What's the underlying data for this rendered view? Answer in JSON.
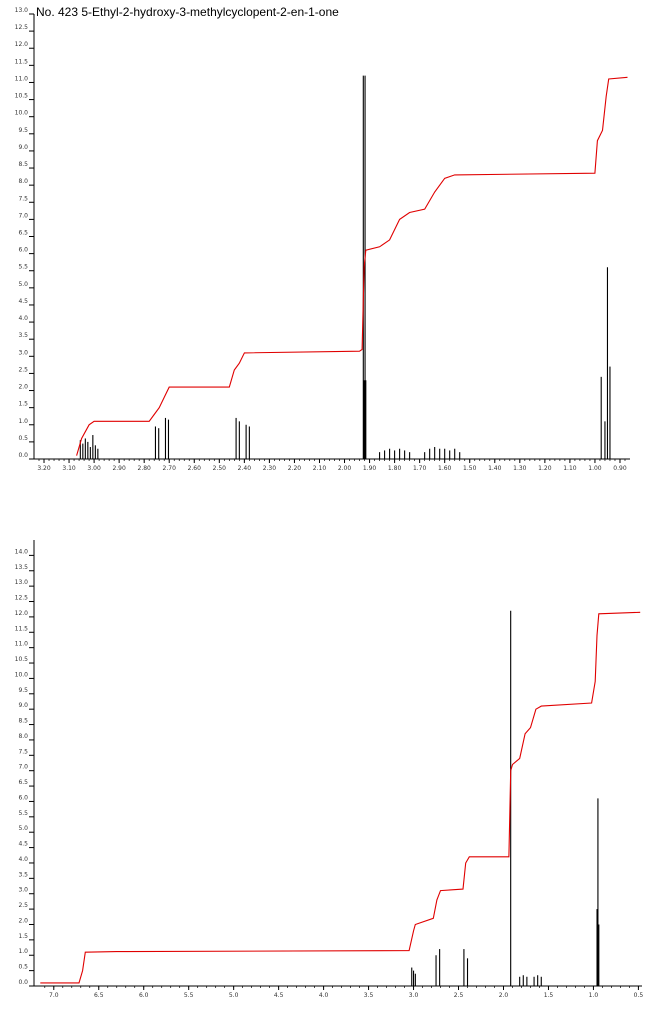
{
  "title": "No. 423 5-Ethyl-2-hydroxy-3-methylcyclopent-2-en-1-one",
  "colors": {
    "spectrum": "#000000",
    "integral": "#e00000",
    "integral_alt": "#1a1aa0",
    "axis": "#000000"
  },
  "chart_data": [
    {
      "type": "line",
      "name": "expanded-spectrum",
      "x_reversed": true,
      "xlim": [
        3.24,
        0.86
      ],
      "ylim": [
        0,
        13.0
      ],
      "x_ticks": [
        "3.20",
        "3.10",
        "3.00",
        "2.90",
        "2.80",
        "2.70",
        "2.60",
        "2.50",
        "2.40",
        "2.30",
        "2.20",
        "2.10",
        "2.00",
        "1.90",
        "1.80",
        "1.70",
        "1.60",
        "1.50",
        "1.40",
        "1.30",
        "1.20",
        "1.10",
        "1.00",
        "0.90"
      ],
      "x_tick_values": [
        3.2,
        3.1,
        3.0,
        2.9,
        2.8,
        2.7,
        2.6,
        2.5,
        2.4,
        2.3,
        2.2,
        2.1,
        2.0,
        1.9,
        1.8,
        1.7,
        1.6,
        1.5,
        1.4,
        1.3,
        1.2,
        1.1,
        1.0,
        0.9
      ],
      "y_ticks": [
        "0.0",
        "0.5",
        "1.0",
        "1.5",
        "2.0",
        "2.5",
        "3.0",
        "3.5",
        "4.0",
        "4.5",
        "5.0",
        "5.5",
        "6.0",
        "6.5",
        "7.0",
        "7.5",
        "8.0",
        "8.5",
        "9.0",
        "9.5",
        "10.0",
        "10.5",
        "11.0",
        "11.5",
        "12.0",
        "12.5",
        "13.0"
      ],
      "y_tick_values": [
        0.0,
        0.5,
        1.0,
        1.5,
        2.0,
        2.5,
        3.0,
        3.5,
        4.0,
        4.5,
        5.0,
        5.5,
        6.0,
        6.5,
        7.0,
        7.5,
        8.0,
        8.5,
        9.0,
        9.5,
        10.0,
        10.5,
        11.0,
        11.5,
        12.0,
        12.5,
        13.0
      ],
      "peaks": [
        {
          "x": 3.055,
          "y": 0.55
        },
        {
          "x": 3.045,
          "y": 0.45
        },
        {
          "x": 3.035,
          "y": 0.6
        },
        {
          "x": 3.025,
          "y": 0.5
        },
        {
          "x": 3.015,
          "y": 0.35
        },
        {
          "x": 3.005,
          "y": 0.7
        },
        {
          "x": 2.995,
          "y": 0.4
        },
        {
          "x": 2.985,
          "y": 0.3
        },
        {
          "x": 2.755,
          "y": 0.95
        },
        {
          "x": 2.742,
          "y": 0.9
        },
        {
          "x": 2.715,
          "y": 1.2
        },
        {
          "x": 2.703,
          "y": 1.15
        },
        {
          "x": 2.433,
          "y": 1.2
        },
        {
          "x": 2.42,
          "y": 1.1
        },
        {
          "x": 2.393,
          "y": 1.0
        },
        {
          "x": 2.38,
          "y": 0.95
        },
        {
          "x": 1.925,
          "y": 11.2
        },
        {
          "x": 1.918,
          "y": 11.2
        },
        {
          "x": 1.922,
          "y": 2.3
        },
        {
          "x": 1.915,
          "y": 2.3
        },
        {
          "x": 1.86,
          "y": 0.2
        },
        {
          "x": 1.84,
          "y": 0.25
        },
        {
          "x": 1.82,
          "y": 0.3
        },
        {
          "x": 1.8,
          "y": 0.25
        },
        {
          "x": 1.78,
          "y": 0.3
        },
        {
          "x": 1.76,
          "y": 0.25
        },
        {
          "x": 1.74,
          "y": 0.2
        },
        {
          "x": 1.68,
          "y": 0.2
        },
        {
          "x": 1.66,
          "y": 0.3
        },
        {
          "x": 1.64,
          "y": 0.35
        },
        {
          "x": 1.62,
          "y": 0.3
        },
        {
          "x": 1.6,
          "y": 0.3
        },
        {
          "x": 1.58,
          "y": 0.25
        },
        {
          "x": 1.56,
          "y": 0.3
        },
        {
          "x": 1.54,
          "y": 0.2
        },
        {
          "x": 0.975,
          "y": 2.4
        },
        {
          "x": 0.96,
          "y": 1.1
        },
        {
          "x": 0.95,
          "y": 5.6
        },
        {
          "x": 0.94,
          "y": 2.7
        }
      ],
      "integral": [
        {
          "x": 3.07,
          "y": 0.1
        },
        {
          "x": 3.05,
          "y": 0.6
        },
        {
          "x": 3.02,
          "y": 1.0
        },
        {
          "x": 3.0,
          "y": 1.1
        },
        {
          "x": 2.78,
          "y": 1.1
        },
        {
          "x": 2.76,
          "y": 1.3
        },
        {
          "x": 2.74,
          "y": 1.5
        },
        {
          "x": 2.72,
          "y": 1.8
        },
        {
          "x": 2.7,
          "y": 2.1
        },
        {
          "x": 2.46,
          "y": 2.1
        },
        {
          "x": 2.44,
          "y": 2.6
        },
        {
          "x": 2.42,
          "y": 2.8
        },
        {
          "x": 2.4,
          "y": 3.1
        },
        {
          "x": 1.94,
          "y": 3.15
        },
        {
          "x": 1.93,
          "y": 3.2
        },
        {
          "x": 1.922,
          "y": 5.6
        },
        {
          "x": 1.915,
          "y": 6.1
        },
        {
          "x": 1.86,
          "y": 6.2
        },
        {
          "x": 1.82,
          "y": 6.4
        },
        {
          "x": 1.78,
          "y": 7.0
        },
        {
          "x": 1.74,
          "y": 7.2
        },
        {
          "x": 1.68,
          "y": 7.3
        },
        {
          "x": 1.64,
          "y": 7.8
        },
        {
          "x": 1.6,
          "y": 8.2
        },
        {
          "x": 1.56,
          "y": 8.3
        },
        {
          "x": 1.0,
          "y": 8.35
        },
        {
          "x": 0.99,
          "y": 9.3
        },
        {
          "x": 0.97,
          "y": 9.6
        },
        {
          "x": 0.955,
          "y": 10.6
        },
        {
          "x": 0.945,
          "y": 11.1
        },
        {
          "x": 0.87,
          "y": 11.15
        }
      ]
    },
    {
      "type": "line",
      "name": "full-spectrum",
      "x_reversed": true,
      "xlim": [
        7.22,
        0.46
      ],
      "ylim": [
        0,
        14.5
      ],
      "x_ticks": [
        "7.0",
        "6.5",
        "6.0",
        "5.5",
        "5.0",
        "4.5",
        "4.0",
        "3.5",
        "3.0",
        "2.5",
        "2.0",
        "1.5",
        "1.0",
        "0.5"
      ],
      "x_tick_values": [
        7.0,
        6.5,
        6.0,
        5.5,
        5.0,
        4.5,
        4.0,
        3.5,
        3.0,
        2.5,
        2.0,
        1.5,
        1.0,
        0.5
      ],
      "y_ticks": [
        "0.0",
        "0.5",
        "1.0",
        "1.5",
        "2.0",
        "2.5",
        "3.0",
        "3.5",
        "4.0",
        "4.5",
        "5.0",
        "5.5",
        "6.0",
        "6.5",
        "7.0",
        "7.5",
        "8.0",
        "8.5",
        "9.0",
        "9.5",
        "10.0",
        "10.5",
        "11.0",
        "11.5",
        "12.0",
        "12.5",
        "13.0",
        "13.5",
        "14.0"
      ],
      "y_tick_values": [
        0.0,
        0.5,
        1.0,
        1.5,
        2.0,
        2.5,
        3.0,
        3.5,
        4.0,
        4.5,
        5.0,
        5.5,
        6.0,
        6.5,
        7.0,
        7.5,
        8.0,
        8.5,
        9.0,
        9.5,
        10.0,
        10.5,
        11.0,
        11.5,
        12.0,
        12.5,
        13.0,
        13.5,
        14.0
      ],
      "peaks": [
        {
          "x": 3.02,
          "y": 0.6
        },
        {
          "x": 3.0,
          "y": 0.5
        },
        {
          "x": 2.98,
          "y": 0.4
        },
        {
          "x": 2.75,
          "y": 1.0
        },
        {
          "x": 2.71,
          "y": 1.2
        },
        {
          "x": 2.44,
          "y": 1.2
        },
        {
          "x": 2.4,
          "y": 0.9
        },
        {
          "x": 1.92,
          "y": 12.2
        },
        {
          "x": 1.82,
          "y": 0.3
        },
        {
          "x": 1.78,
          "y": 0.35
        },
        {
          "x": 1.74,
          "y": 0.3
        },
        {
          "x": 1.66,
          "y": 0.3
        },
        {
          "x": 1.62,
          "y": 0.35
        },
        {
          "x": 1.58,
          "y": 0.3
        },
        {
          "x": 0.96,
          "y": 2.5
        },
        {
          "x": 0.95,
          "y": 6.1
        },
        {
          "x": 0.94,
          "y": 2.0
        }
      ],
      "integral": [
        {
          "x": 7.15,
          "y": 0.1
        },
        {
          "x": 6.72,
          "y": 0.1
        },
        {
          "x": 6.68,
          "y": 0.5
        },
        {
          "x": 6.65,
          "y": 1.1
        },
        {
          "x": 6.3,
          "y": 1.12
        },
        {
          "x": 3.05,
          "y": 1.15
        },
        {
          "x": 3.0,
          "y": 1.8
        },
        {
          "x": 2.98,
          "y": 2.0
        },
        {
          "x": 2.78,
          "y": 2.2
        },
        {
          "x": 2.74,
          "y": 2.8
        },
        {
          "x": 2.7,
          "y": 3.1
        },
        {
          "x": 2.45,
          "y": 3.15
        },
        {
          "x": 2.42,
          "y": 4.0
        },
        {
          "x": 2.38,
          "y": 4.2
        },
        {
          "x": 1.94,
          "y": 4.2
        },
        {
          "x": 1.92,
          "y": 7.0
        },
        {
          "x": 1.9,
          "y": 7.2
        },
        {
          "x": 1.82,
          "y": 7.4
        },
        {
          "x": 1.76,
          "y": 8.2
        },
        {
          "x": 1.7,
          "y": 8.4
        },
        {
          "x": 1.64,
          "y": 9.0
        },
        {
          "x": 1.58,
          "y": 9.1
        },
        {
          "x": 1.02,
          "y": 9.2
        },
        {
          "x": 0.98,
          "y": 9.9
        },
        {
          "x": 0.96,
          "y": 11.4
        },
        {
          "x": 0.94,
          "y": 12.1
        },
        {
          "x": 0.48,
          "y": 12.15
        }
      ]
    }
  ]
}
